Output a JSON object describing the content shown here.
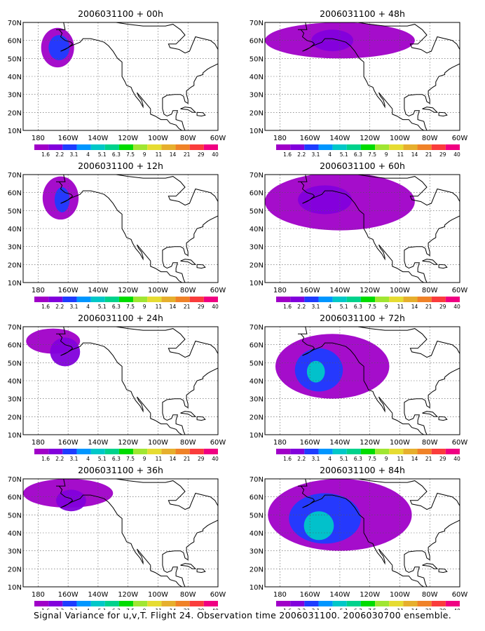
{
  "figure": {
    "caption": "Signal Variance for u,v,T. Flight 24. Observation time 2006031100. 2006030700 ensemble."
  },
  "colorbar": {
    "labels": [
      "1.6",
      "2.2",
      "3.1",
      "4",
      "5.1",
      "6.3",
      "7.5",
      "9",
      "11",
      "14",
      "21",
      "29",
      "40"
    ],
    "colors": [
      "#a000c8",
      "#8200dc",
      "#1e3cff",
      "#0096ff",
      "#00c8c8",
      "#00d28c",
      "#00dc00",
      "#a0e632",
      "#e6dc32",
      "#e6af2d",
      "#f08228",
      "#fa3c3c",
      "#f00082"
    ]
  },
  "axes": {
    "x_ticks": [
      "180",
      "160W",
      "140W",
      "120W",
      "100W",
      "80W",
      "60W"
    ],
    "y_ticks": [
      "70N",
      "60N",
      "50N",
      "40N",
      "30N",
      "20N",
      "10N"
    ]
  },
  "chart_data": [
    {
      "type": "heatmap",
      "title": "2006031100 + 00h",
      "xlim": [
        -190,
        -60
      ],
      "ylim": [
        10,
        70
      ],
      "blobs": [
        {
          "lon": -167,
          "lat": 56,
          "rx": 11,
          "ry": 11,
          "level": 0
        },
        {
          "lon": -166,
          "lat": 56,
          "rx": 7,
          "ry": 7,
          "level": 2
        }
      ]
    },
    {
      "type": "heatmap",
      "title": "2006031100 + 12h",
      "xlim": [
        -190,
        -60
      ],
      "ylim": [
        10,
        70
      ],
      "blobs": [
        {
          "lon": -165,
          "lat": 57,
          "rx": 12,
          "ry": 12,
          "level": 0
        },
        {
          "lon": -164,
          "lat": 56,
          "rx": 5,
          "ry": 7,
          "level": 2
        }
      ]
    },
    {
      "type": "heatmap",
      "title": "2006031100 + 24h",
      "xlim": [
        -190,
        -60
      ],
      "ylim": [
        10,
        70
      ],
      "blobs": [
        {
          "lon": -170,
          "lat": 62,
          "rx": 18,
          "ry": 7,
          "level": 0
        },
        {
          "lon": -162,
          "lat": 56,
          "rx": 10,
          "ry": 8,
          "level": 1
        }
      ]
    },
    {
      "type": "heatmap",
      "title": "2006031100 + 36h",
      "xlim": [
        -190,
        -60
      ],
      "ylim": [
        10,
        70
      ],
      "blobs": [
        {
          "lon": -160,
          "lat": 62,
          "rx": 30,
          "ry": 8,
          "level": 0
        },
        {
          "lon": -158,
          "lat": 58,
          "rx": 10,
          "ry": 6,
          "level": 1
        }
      ]
    },
    {
      "type": "heatmap",
      "title": "2006031100 + 48h",
      "xlim": [
        -190,
        -60
      ],
      "ylim": [
        10,
        70
      ],
      "blobs": [
        {
          "lon": -140,
          "lat": 60,
          "rx": 50,
          "ry": 10,
          "level": 0
        },
        {
          "lon": -145,
          "lat": 60,
          "rx": 14,
          "ry": 6,
          "level": 1
        }
      ]
    },
    {
      "type": "heatmap",
      "title": "2006031100 + 60h",
      "xlim": [
        -190,
        -60
      ],
      "ylim": [
        10,
        70
      ],
      "blobs": [
        {
          "lon": -140,
          "lat": 55,
          "rx": 50,
          "ry": 16,
          "level": 0
        },
        {
          "lon": -150,
          "lat": 56,
          "rx": 18,
          "ry": 8,
          "level": 1
        }
      ]
    },
    {
      "type": "heatmap",
      "title": "2006031100 + 72h",
      "xlim": [
        -190,
        -60
      ],
      "ylim": [
        10,
        70
      ],
      "blobs": [
        {
          "lon": -145,
          "lat": 48,
          "rx": 38,
          "ry": 18,
          "level": 0
        },
        {
          "lon": -154,
          "lat": 46,
          "rx": 16,
          "ry": 12,
          "level": 2
        },
        {
          "lon": -156,
          "lat": 45,
          "rx": 6,
          "ry": 6,
          "level": 4
        }
      ]
    },
    {
      "type": "heatmap",
      "title": "2006031100 + 84h",
      "xlim": [
        -190,
        -60
      ],
      "ylim": [
        10,
        70
      ],
      "blobs": [
        {
          "lon": -140,
          "lat": 50,
          "rx": 48,
          "ry": 20,
          "level": 0
        },
        {
          "lon": -150,
          "lat": 48,
          "rx": 24,
          "ry": 14,
          "level": 2
        },
        {
          "lon": -154,
          "lat": 44,
          "rx": 10,
          "ry": 8,
          "level": 4
        }
      ]
    }
  ]
}
